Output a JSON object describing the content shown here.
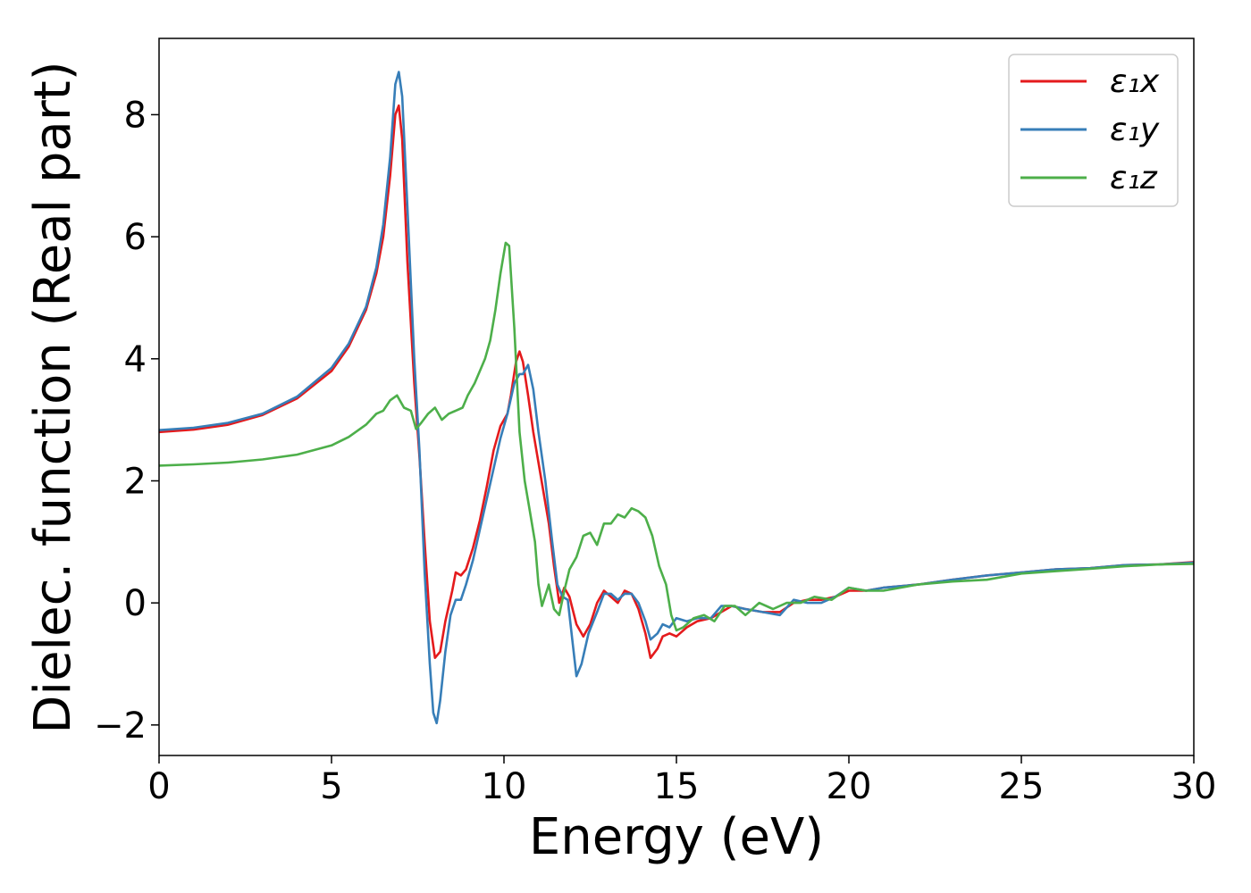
{
  "chart_data": {
    "type": "line",
    "title": "",
    "xlabel": "Energy (eV)",
    "ylabel": "Dielec. function (Real part)",
    "xlim": [
      0,
      30
    ],
    "ylim": [
      -2.5,
      9.25
    ],
    "xticks": [
      0,
      5,
      10,
      15,
      20,
      25,
      30
    ],
    "yticks": [
      -2,
      0,
      2,
      4,
      6,
      8
    ],
    "xtick_labels": [
      "0",
      "5",
      "10",
      "15",
      "20",
      "25",
      "30"
    ],
    "ytick_labels": [
      "−2",
      "0",
      "2",
      "4",
      "6",
      "8"
    ],
    "grid": false,
    "legend_position": "top-right",
    "series": [
      {
        "name": "ε₁x",
        "color": "#e41a1c",
        "points": [
          [
            0,
            2.8
          ],
          [
            1,
            2.84
          ],
          [
            2,
            2.92
          ],
          [
            3,
            3.08
          ],
          [
            4,
            3.35
          ],
          [
            5,
            3.8
          ],
          [
            5.5,
            4.2
          ],
          [
            6,
            4.8
          ],
          [
            6.3,
            5.4
          ],
          [
            6.5,
            6.0
          ],
          [
            6.7,
            7.0
          ],
          [
            6.85,
            8.0
          ],
          [
            6.95,
            8.15
          ],
          [
            7.05,
            7.6
          ],
          [
            7.2,
            5.6
          ],
          [
            7.4,
            3.6
          ],
          [
            7.55,
            2.4
          ],
          [
            7.7,
            1.0
          ],
          [
            7.85,
            -0.3
          ],
          [
            8.0,
            -0.9
          ],
          [
            8.15,
            -0.8
          ],
          [
            8.3,
            -0.3
          ],
          [
            8.5,
            0.2
          ],
          [
            8.6,
            0.5
          ],
          [
            8.75,
            0.45
          ],
          [
            8.9,
            0.55
          ],
          [
            9.1,
            0.9
          ],
          [
            9.3,
            1.35
          ],
          [
            9.5,
            1.9
          ],
          [
            9.7,
            2.5
          ],
          [
            9.9,
            2.9
          ],
          [
            10.1,
            3.1
          ],
          [
            10.2,
            3.4
          ],
          [
            10.35,
            3.95
          ],
          [
            10.45,
            4.12
          ],
          [
            10.55,
            3.95
          ],
          [
            10.7,
            3.4
          ],
          [
            10.85,
            2.8
          ],
          [
            11.0,
            2.3
          ],
          [
            11.15,
            1.8
          ],
          [
            11.3,
            1.3
          ],
          [
            11.45,
            0.6
          ],
          [
            11.6,
            0.0
          ],
          [
            11.75,
            0.25
          ],
          [
            11.9,
            0.1
          ],
          [
            12.1,
            -0.35
          ],
          [
            12.3,
            -0.55
          ],
          [
            12.5,
            -0.35
          ],
          [
            12.7,
            0.0
          ],
          [
            12.9,
            0.2
          ],
          [
            13.1,
            0.1
          ],
          [
            13.3,
            0.0
          ],
          [
            13.5,
            0.2
          ],
          [
            13.7,
            0.15
          ],
          [
            13.9,
            -0.1
          ],
          [
            14.1,
            -0.5
          ],
          [
            14.25,
            -0.9
          ],
          [
            14.45,
            -0.75
          ],
          [
            14.6,
            -0.55
          ],
          [
            14.8,
            -0.5
          ],
          [
            15.0,
            -0.55
          ],
          [
            15.3,
            -0.4
          ],
          [
            15.6,
            -0.3
          ],
          [
            16.0,
            -0.25
          ],
          [
            16.3,
            -0.15
          ],
          [
            16.6,
            -0.05
          ],
          [
            17.0,
            -0.1
          ],
          [
            17.5,
            -0.15
          ],
          [
            18.0,
            -0.15
          ],
          [
            18.4,
            0.0
          ],
          [
            18.8,
            0.05
          ],
          [
            19.2,
            0.05
          ],
          [
            19.6,
            0.1
          ],
          [
            20.0,
            0.2
          ],
          [
            20.5,
            0.2
          ],
          [
            21.0,
            0.25
          ],
          [
            22.0,
            0.3
          ],
          [
            23.0,
            0.38
          ],
          [
            24.0,
            0.45
          ],
          [
            25.0,
            0.5
          ],
          [
            26.0,
            0.55
          ],
          [
            27.0,
            0.57
          ],
          [
            28.0,
            0.62
          ],
          [
            29.0,
            0.63
          ],
          [
            30.0,
            0.67
          ]
        ]
      },
      {
        "name": "ε₁y",
        "color": "#377eb8",
        "points": [
          [
            0,
            2.83
          ],
          [
            1,
            2.87
          ],
          [
            2,
            2.95
          ],
          [
            3,
            3.1
          ],
          [
            4,
            3.38
          ],
          [
            5,
            3.85
          ],
          [
            5.5,
            4.25
          ],
          [
            6,
            4.85
          ],
          [
            6.3,
            5.5
          ],
          [
            6.5,
            6.2
          ],
          [
            6.7,
            7.3
          ],
          [
            6.85,
            8.5
          ],
          [
            6.95,
            8.7
          ],
          [
            7.05,
            8.3
          ],
          [
            7.2,
            6.5
          ],
          [
            7.4,
            4.0
          ],
          [
            7.55,
            2.5
          ],
          [
            7.7,
            0.5
          ],
          [
            7.85,
            -1.0
          ],
          [
            7.95,
            -1.8
          ],
          [
            8.05,
            -1.97
          ],
          [
            8.15,
            -1.6
          ],
          [
            8.3,
            -0.8
          ],
          [
            8.45,
            -0.2
          ],
          [
            8.6,
            0.05
          ],
          [
            8.75,
            0.05
          ],
          [
            8.9,
            0.3
          ],
          [
            9.1,
            0.7
          ],
          [
            9.3,
            1.2
          ],
          [
            9.5,
            1.7
          ],
          [
            9.7,
            2.2
          ],
          [
            9.9,
            2.7
          ],
          [
            10.1,
            3.1
          ],
          [
            10.3,
            3.6
          ],
          [
            10.45,
            3.75
          ],
          [
            10.55,
            3.75
          ],
          [
            10.7,
            3.9
          ],
          [
            10.85,
            3.5
          ],
          [
            11.0,
            2.8
          ],
          [
            11.2,
            2.0
          ],
          [
            11.4,
            1.0
          ],
          [
            11.55,
            0.3
          ],
          [
            11.7,
            0.1
          ],
          [
            11.85,
            0.05
          ],
          [
            12.0,
            -0.7
          ],
          [
            12.1,
            -1.2
          ],
          [
            12.25,
            -1.0
          ],
          [
            12.45,
            -0.5
          ],
          [
            12.7,
            -0.15
          ],
          [
            12.9,
            0.15
          ],
          [
            13.1,
            0.15
          ],
          [
            13.3,
            0.05
          ],
          [
            13.5,
            0.15
          ],
          [
            13.7,
            0.15
          ],
          [
            13.9,
            0.0
          ],
          [
            14.1,
            -0.3
          ],
          [
            14.25,
            -0.6
          ],
          [
            14.45,
            -0.5
          ],
          [
            14.6,
            -0.35
          ],
          [
            14.8,
            -0.4
          ],
          [
            15.0,
            -0.25
          ],
          [
            15.3,
            -0.3
          ],
          [
            15.6,
            -0.25
          ],
          [
            16.0,
            -0.25
          ],
          [
            16.3,
            -0.05
          ],
          [
            16.6,
            -0.05
          ],
          [
            17.0,
            -0.1
          ],
          [
            17.5,
            -0.15
          ],
          [
            18.0,
            -0.2
          ],
          [
            18.4,
            0.05
          ],
          [
            18.8,
            0.0
          ],
          [
            19.2,
            0.0
          ],
          [
            19.6,
            0.1
          ],
          [
            20.0,
            0.25
          ],
          [
            20.5,
            0.2
          ],
          [
            21.0,
            0.25
          ],
          [
            22.0,
            0.3
          ],
          [
            23.0,
            0.38
          ],
          [
            24.0,
            0.45
          ],
          [
            25.0,
            0.5
          ],
          [
            26.0,
            0.55
          ],
          [
            27.0,
            0.57
          ],
          [
            28.0,
            0.62
          ],
          [
            29.0,
            0.63
          ],
          [
            30.0,
            0.66
          ]
        ]
      },
      {
        "name": "ε₁z",
        "color": "#4daf4a",
        "points": [
          [
            0,
            2.25
          ],
          [
            1,
            2.27
          ],
          [
            2,
            2.3
          ],
          [
            3,
            2.35
          ],
          [
            4,
            2.43
          ],
          [
            5,
            2.58
          ],
          [
            5.5,
            2.72
          ],
          [
            6,
            2.92
          ],
          [
            6.3,
            3.1
          ],
          [
            6.5,
            3.15
          ],
          [
            6.7,
            3.32
          ],
          [
            6.9,
            3.4
          ],
          [
            7.1,
            3.2
          ],
          [
            7.3,
            3.15
          ],
          [
            7.45,
            2.85
          ],
          [
            7.6,
            2.95
          ],
          [
            7.8,
            3.1
          ],
          [
            8.0,
            3.2
          ],
          [
            8.2,
            3.0
          ],
          [
            8.4,
            3.1
          ],
          [
            8.6,
            3.15
          ],
          [
            8.8,
            3.2
          ],
          [
            8.95,
            3.4
          ],
          [
            9.15,
            3.6
          ],
          [
            9.3,
            3.8
          ],
          [
            9.45,
            4.0
          ],
          [
            9.6,
            4.3
          ],
          [
            9.75,
            4.8
          ],
          [
            9.9,
            5.4
          ],
          [
            10.05,
            5.9
          ],
          [
            10.15,
            5.85
          ],
          [
            10.3,
            4.5
          ],
          [
            10.45,
            2.8
          ],
          [
            10.6,
            2.0
          ],
          [
            10.75,
            1.5
          ],
          [
            10.9,
            1.0
          ],
          [
            11.0,
            0.3
          ],
          [
            11.1,
            -0.05
          ],
          [
            11.3,
            0.3
          ],
          [
            11.45,
            -0.1
          ],
          [
            11.6,
            -0.2
          ],
          [
            11.75,
            0.2
          ],
          [
            11.9,
            0.55
          ],
          [
            12.1,
            0.75
          ],
          [
            12.3,
            1.1
          ],
          [
            12.5,
            1.15
          ],
          [
            12.7,
            0.95
          ],
          [
            12.9,
            1.3
          ],
          [
            13.1,
            1.3
          ],
          [
            13.3,
            1.45
          ],
          [
            13.5,
            1.4
          ],
          [
            13.7,
            1.55
          ],
          [
            13.9,
            1.5
          ],
          [
            14.1,
            1.4
          ],
          [
            14.3,
            1.1
          ],
          [
            14.5,
            0.6
          ],
          [
            14.7,
            0.3
          ],
          [
            14.85,
            -0.2
          ],
          [
            15.0,
            -0.45
          ],
          [
            15.2,
            -0.4
          ],
          [
            15.5,
            -0.25
          ],
          [
            15.8,
            -0.2
          ],
          [
            16.1,
            -0.3
          ],
          [
            16.4,
            -0.05
          ],
          [
            16.7,
            -0.05
          ],
          [
            17.0,
            -0.2
          ],
          [
            17.4,
            0.0
          ],
          [
            17.8,
            -0.1
          ],
          [
            18.2,
            0.0
          ],
          [
            18.6,
            0.0
          ],
          [
            19.0,
            0.1
          ],
          [
            19.5,
            0.05
          ],
          [
            20.0,
            0.25
          ],
          [
            20.5,
            0.2
          ],
          [
            21.0,
            0.2
          ],
          [
            22.0,
            0.3
          ],
          [
            23.0,
            0.35
          ],
          [
            24.0,
            0.38
          ],
          [
            25.0,
            0.48
          ],
          [
            26.0,
            0.52
          ],
          [
            27.0,
            0.56
          ],
          [
            28.0,
            0.6
          ],
          [
            29.0,
            0.63
          ],
          [
            30.0,
            0.64
          ]
        ]
      }
    ]
  }
}
